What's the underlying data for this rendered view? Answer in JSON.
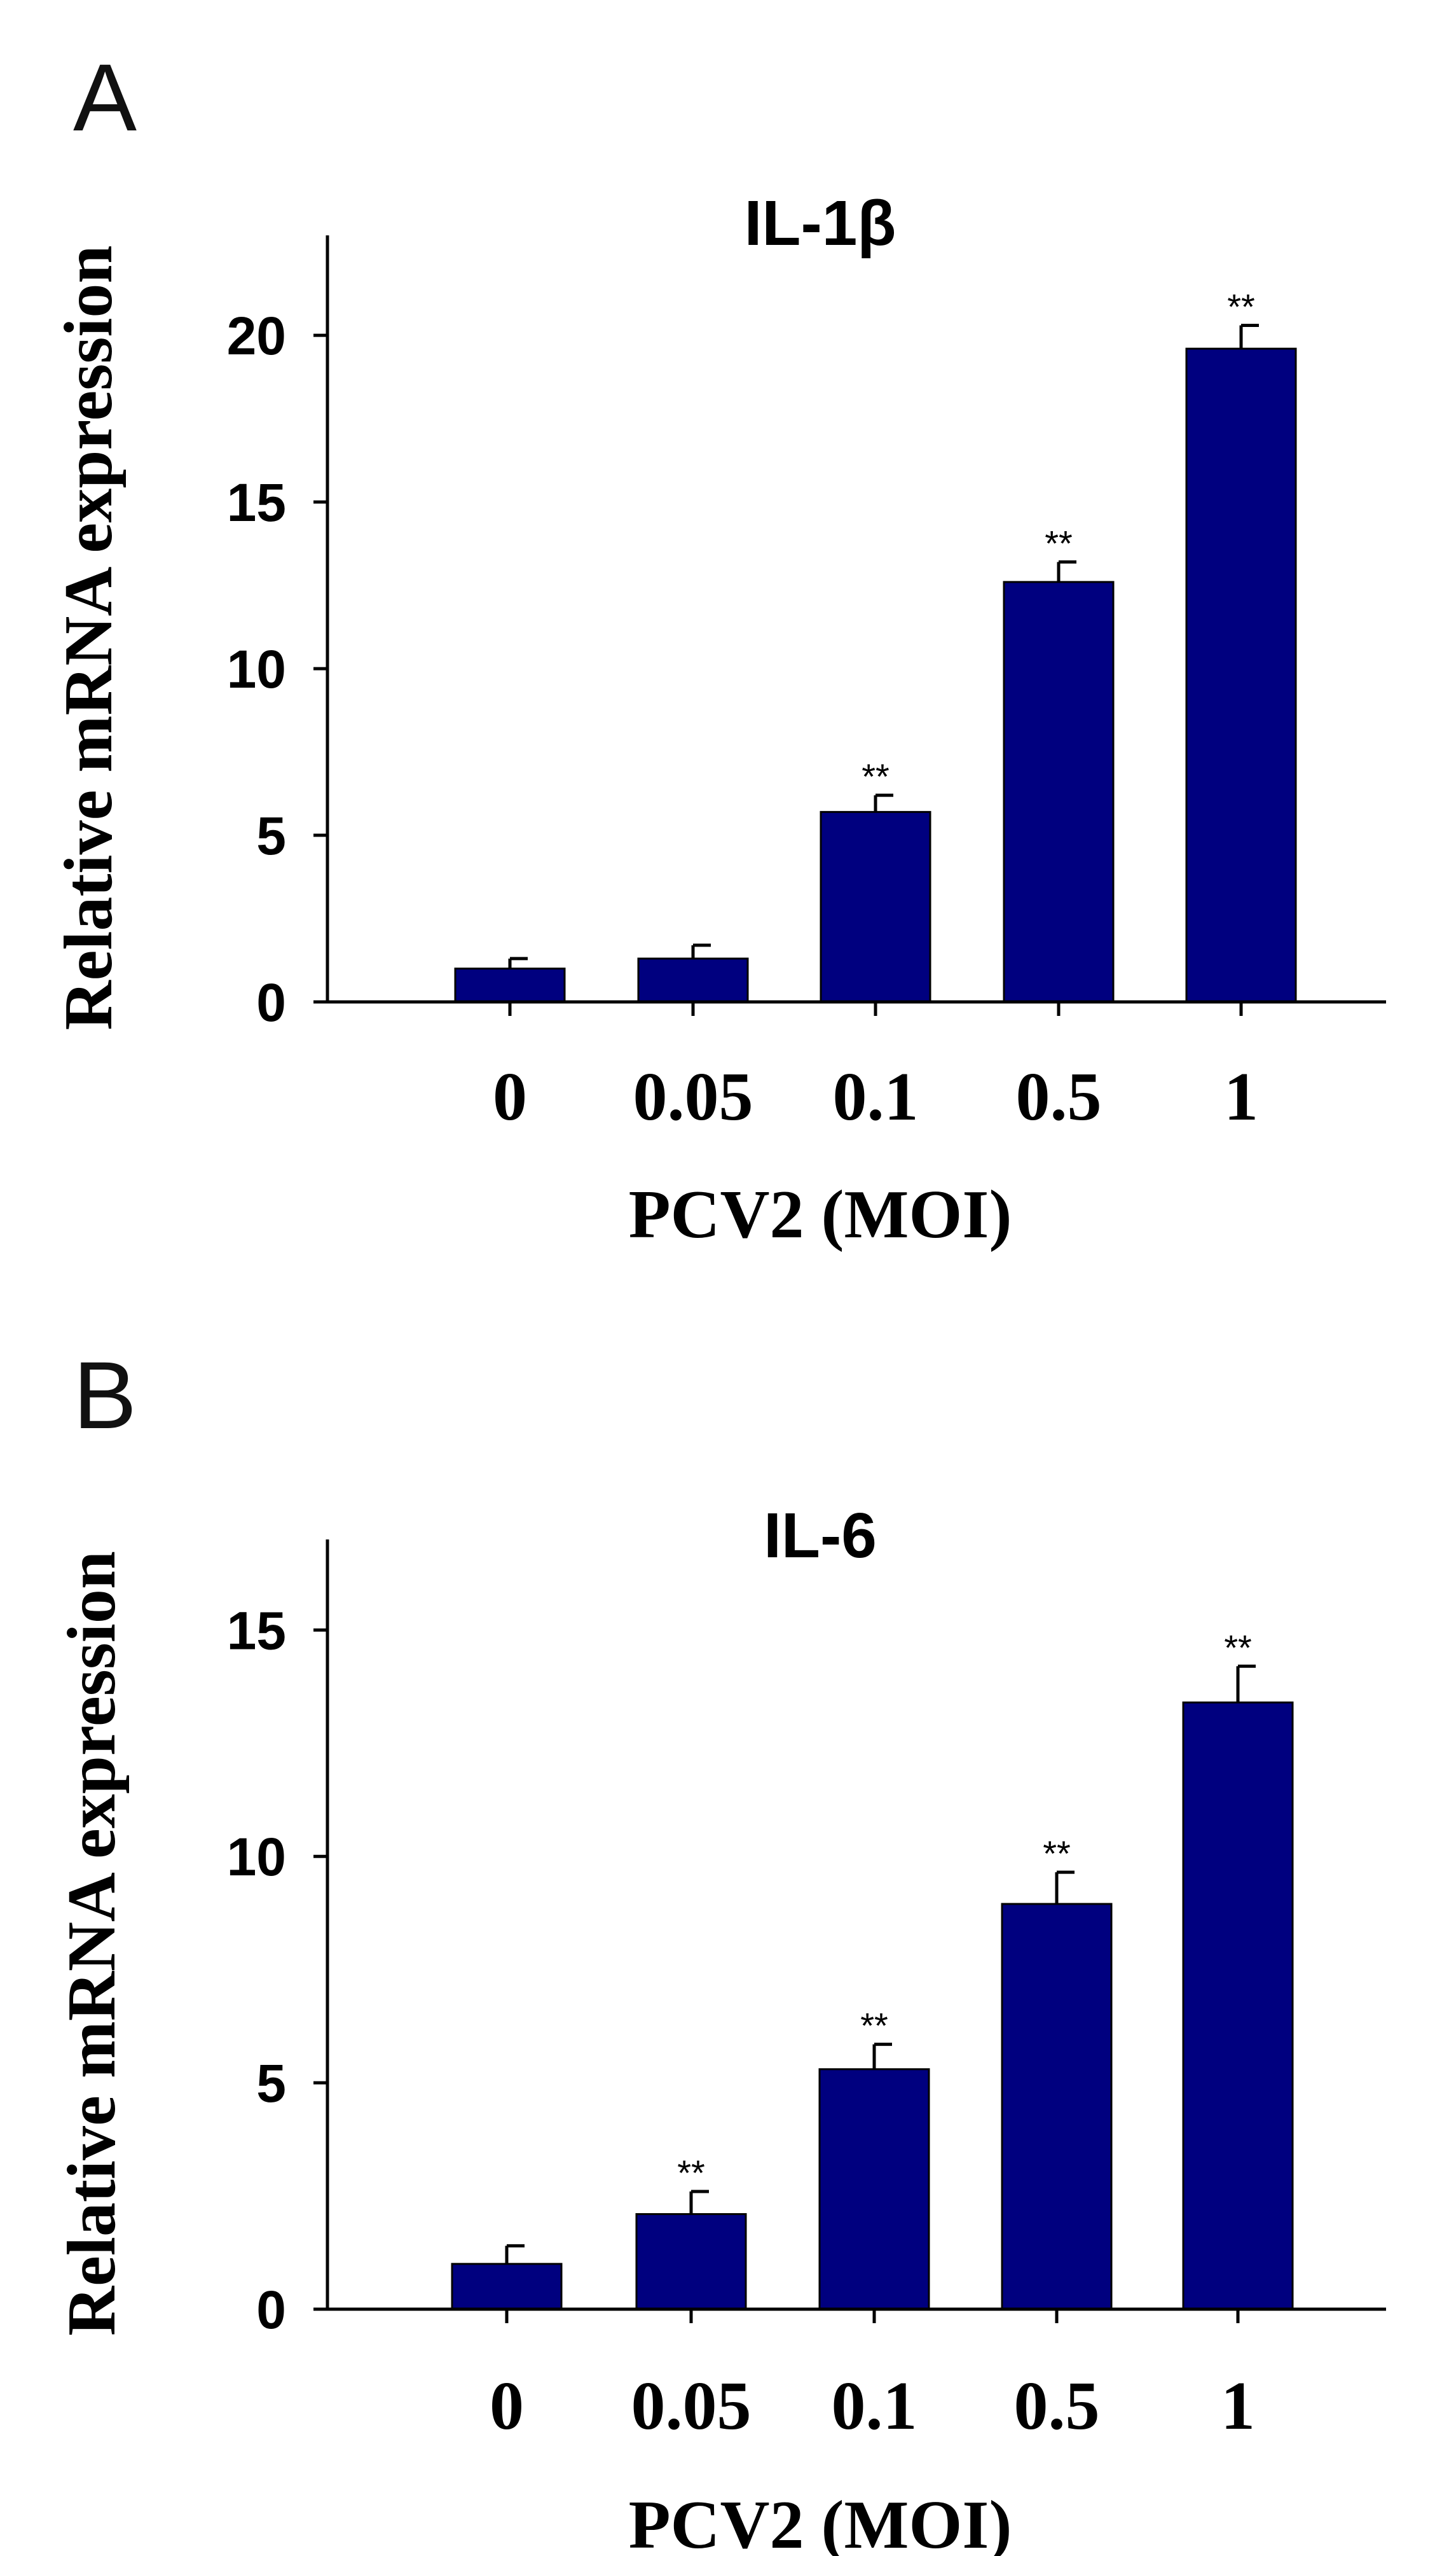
{
  "chart_data": [
    {
      "type": "bar",
      "panel_label": "A",
      "title": "IL-1β",
      "categories": [
        "0",
        "0.05",
        "0.1",
        "0.5",
        "1"
      ],
      "values": [
        1.0,
        1.3,
        5.7,
        12.6,
        19.6
      ],
      "errors": [
        0.3,
        0.4,
        0.5,
        0.6,
        0.7
      ],
      "significance": [
        "",
        "",
        "**",
        "**",
        "**"
      ],
      "xlabel": "PCV2 (MOI)",
      "ylabel": "Relative mRNA expression",
      "ylim": [
        0,
        23
      ],
      "yticks": [
        0,
        5,
        10,
        15,
        20
      ],
      "bar_color": "#00007f",
      "grid": false
    },
    {
      "type": "bar",
      "panel_label": "B",
      "title": "IL-6",
      "categories": [
        "0",
        "0.05",
        "0.1",
        "0.5",
        "1"
      ],
      "values": [
        1.0,
        2.1,
        5.3,
        8.95,
        13.4
      ],
      "errors": [
        0.4,
        0.5,
        0.55,
        0.7,
        0.8
      ],
      "significance": [
        "",
        "**",
        "**",
        "**",
        "**"
      ],
      "xlabel": "PCV2 (MOI)",
      "ylabel": "Relative mRNA expression",
      "ylim": [
        0,
        17
      ],
      "yticks": [
        0,
        5,
        10,
        15
      ],
      "bar_color": "#00007f",
      "grid": false
    }
  ]
}
